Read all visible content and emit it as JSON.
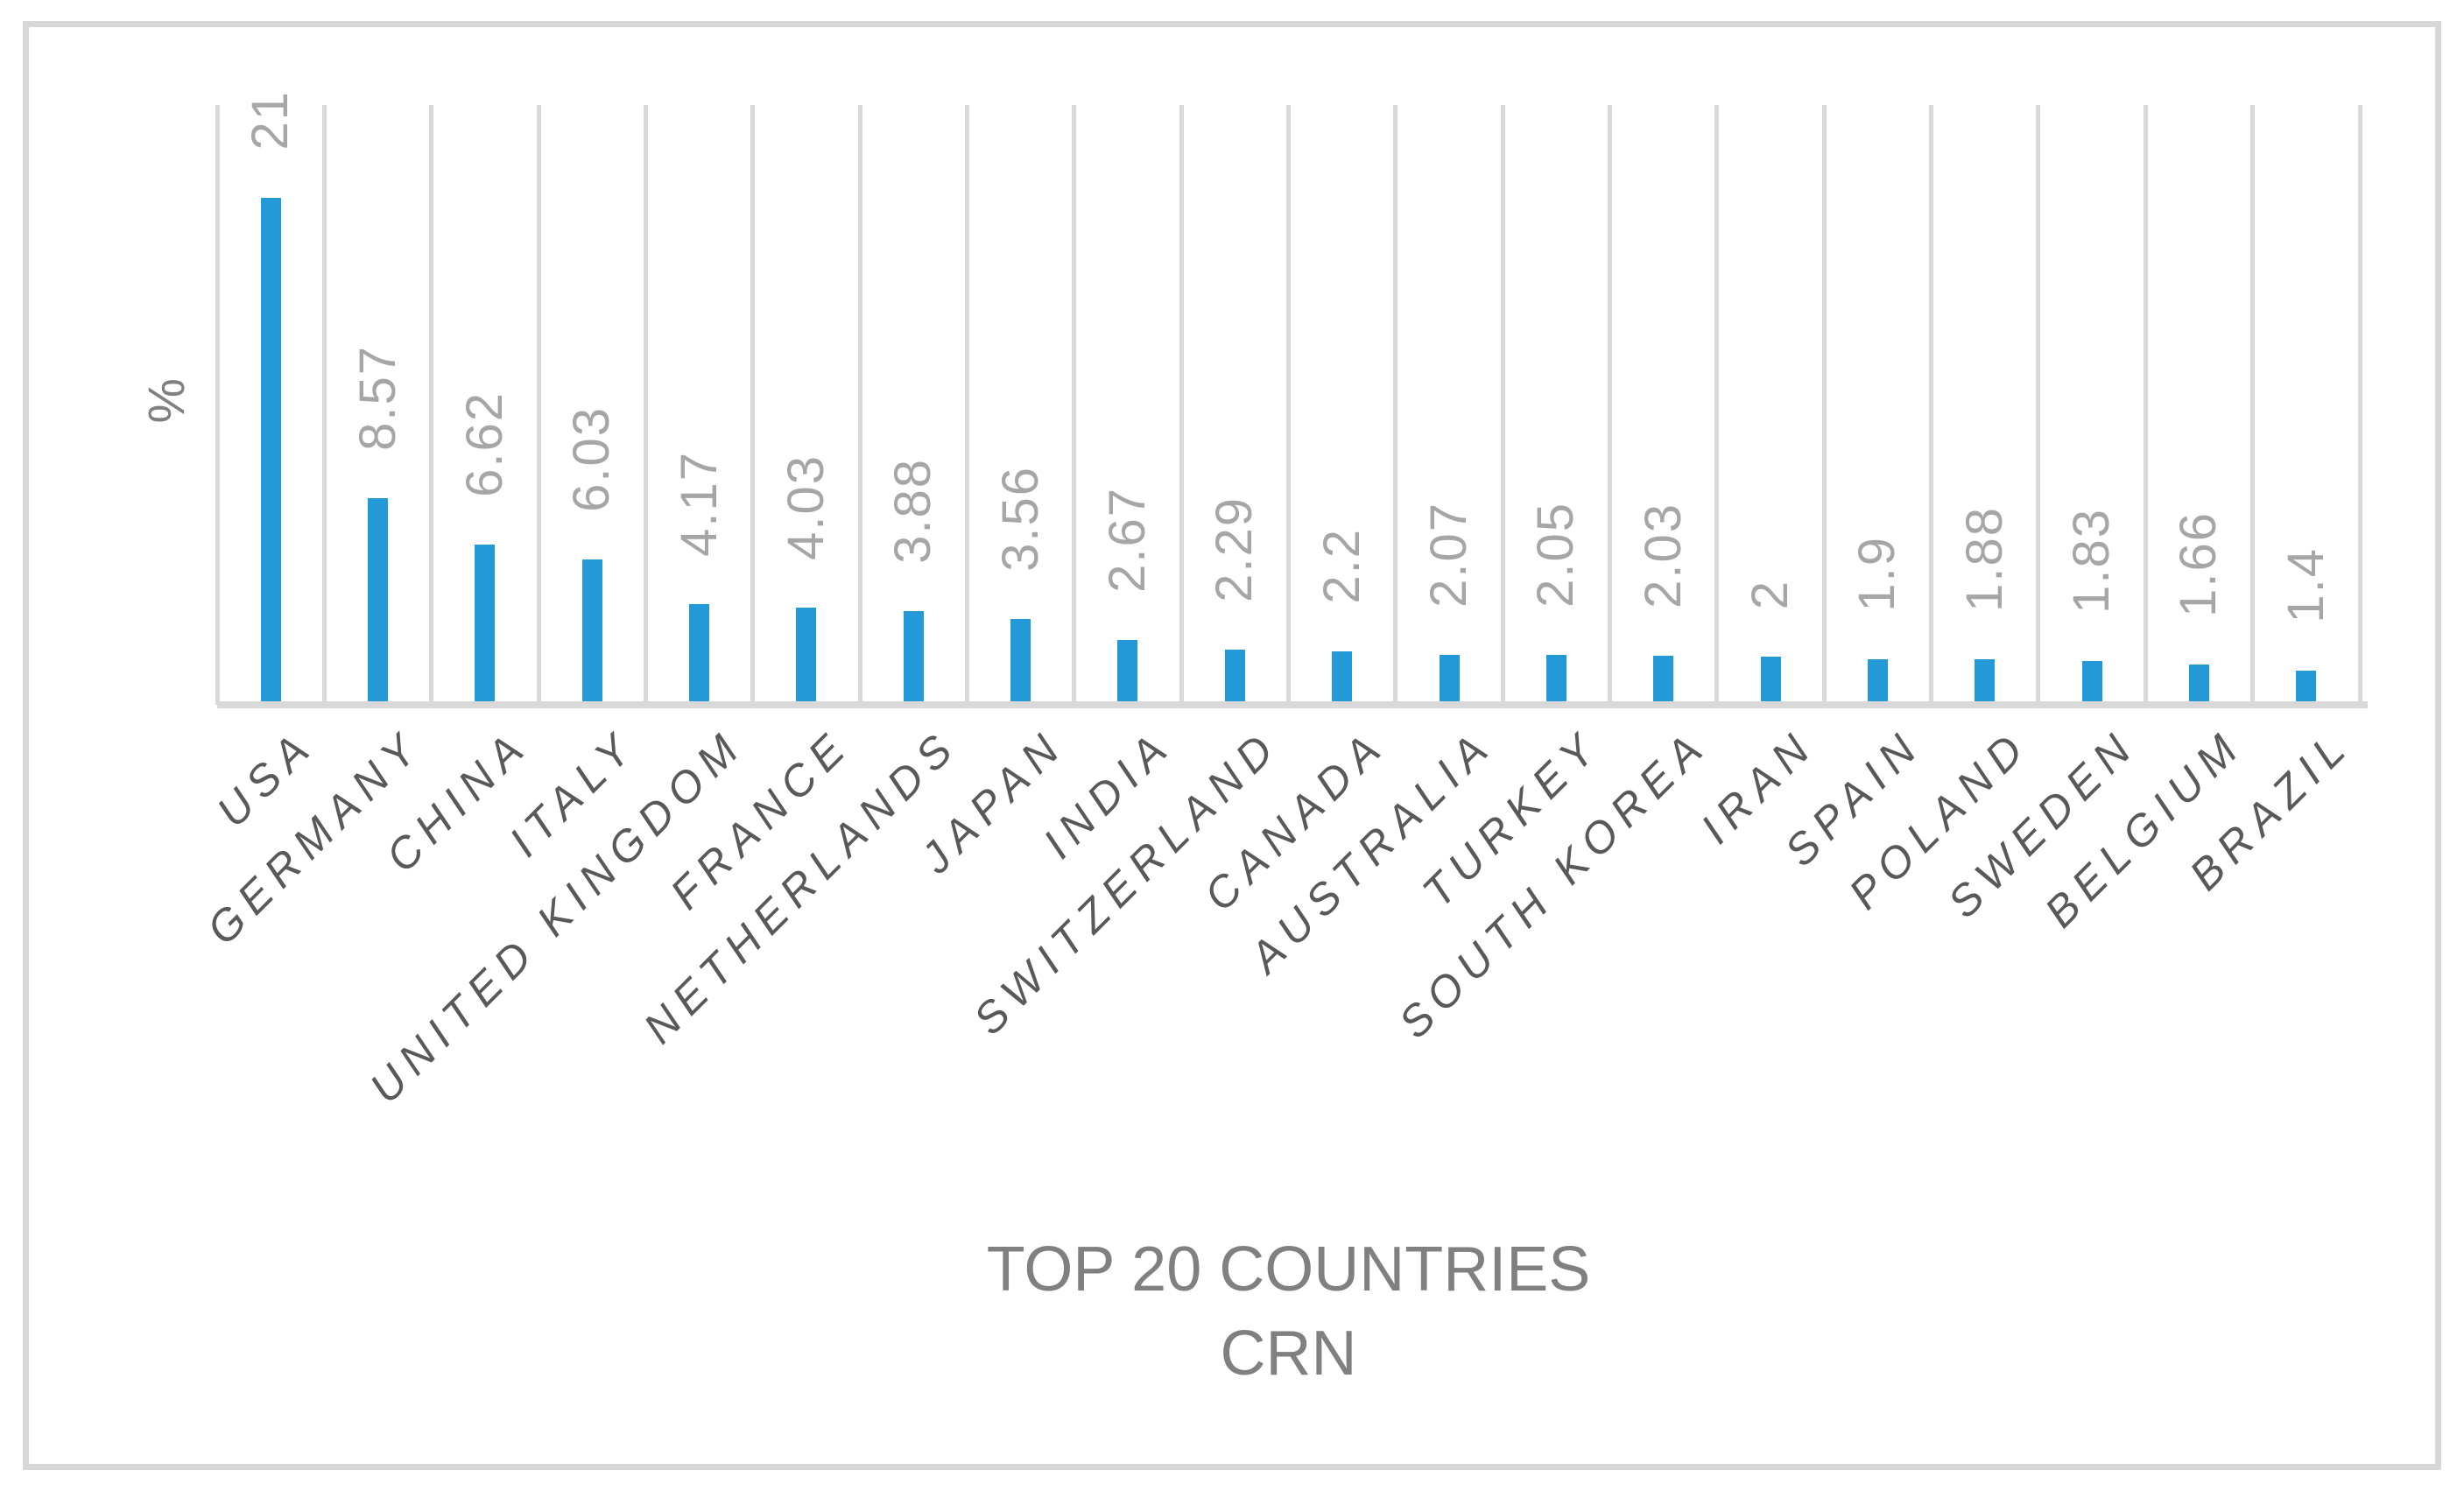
{
  "chart_data": {
    "type": "bar",
    "title": "TOP 20 COUNTRIES",
    "subtitle": "CRN",
    "ylabel": "%",
    "categories": [
      "USA",
      "GERMANY",
      "CHINA",
      "ITALY",
      "UNITED KINGDOM",
      "FRANCE",
      "NETHERLANDS",
      "JAPAN",
      "INDIA",
      "SWITZERLAND",
      "CANADA",
      "AUSTRALIA",
      "TURKEY",
      "SOUTH KOREA",
      "IRAN",
      "SPAIN",
      "POLAND",
      "SWEDEN",
      "BELGIUM",
      "BRAZIL"
    ],
    "values": [
      21,
      8.57,
      6.62,
      6.03,
      4.17,
      4.03,
      3.88,
      3.56,
      2.67,
      2.29,
      2.2,
      2.07,
      2.05,
      2.03,
      2,
      1.9,
      1.88,
      1.83,
      1.66,
      1.4
    ],
    "ylim": [
      0,
      24.84
    ],
    "grid": "vertical category separators, no horizontal gridlines",
    "legend": "none",
    "colors": {
      "bar": "#2399d8",
      "gridline": "#d9d9d9",
      "axis_line": "#d9d9d9",
      "value_label": "#a6a6a6",
      "category_label": "#595959",
      "title": "#808080",
      "y_axis_title": "#808080",
      "frame": "#d7d7d7"
    }
  }
}
